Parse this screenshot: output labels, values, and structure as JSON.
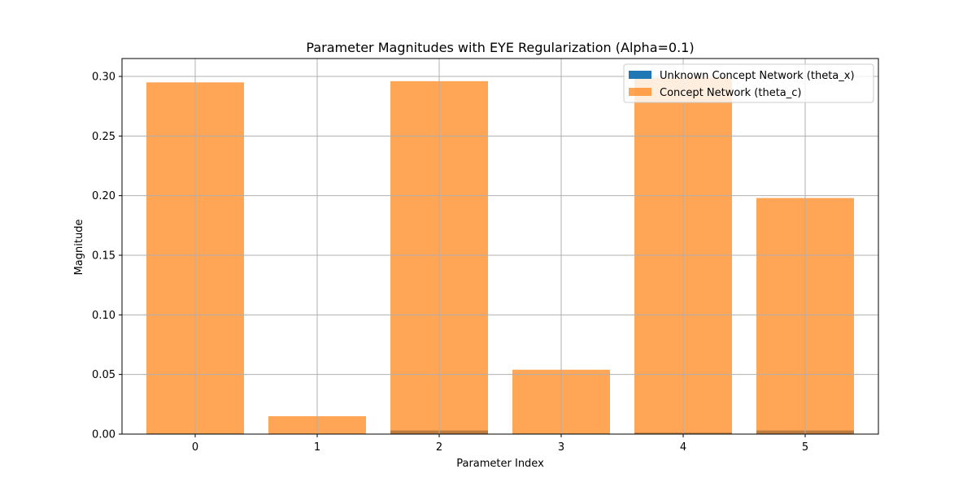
{
  "chart_data": {
    "type": "bar",
    "title": "Parameter Magnitudes with EYE Regularization (Alpha=0.1)",
    "xlabel": "Parameter Index",
    "ylabel": "Magnitude",
    "categories": [
      "0",
      "1",
      "2",
      "3",
      "4",
      "5"
    ],
    "ylim": [
      0,
      0.315
    ],
    "yticks": [
      "0.00",
      "0.05",
      "0.10",
      "0.15",
      "0.20",
      "0.25",
      "0.30"
    ],
    "ytick_values": [
      0,
      0.05,
      0.1,
      0.15,
      0.2,
      0.25,
      0.3
    ],
    "grid": true,
    "legend_position": "top-right",
    "series": [
      {
        "name": "Unknown Concept Network (theta_x)",
        "color": "#1f77b4",
        "values": [
          0.0005,
          0.0003,
          0.003,
          0.0005,
          0.0012,
          0.003
        ]
      },
      {
        "name": "Concept Network (theta_c)",
        "color": "#ff7f0e",
        "alpha": 0.7,
        "values": [
          0.295,
          0.015,
          0.296,
          0.054,
          0.299,
          0.198
        ]
      }
    ]
  }
}
